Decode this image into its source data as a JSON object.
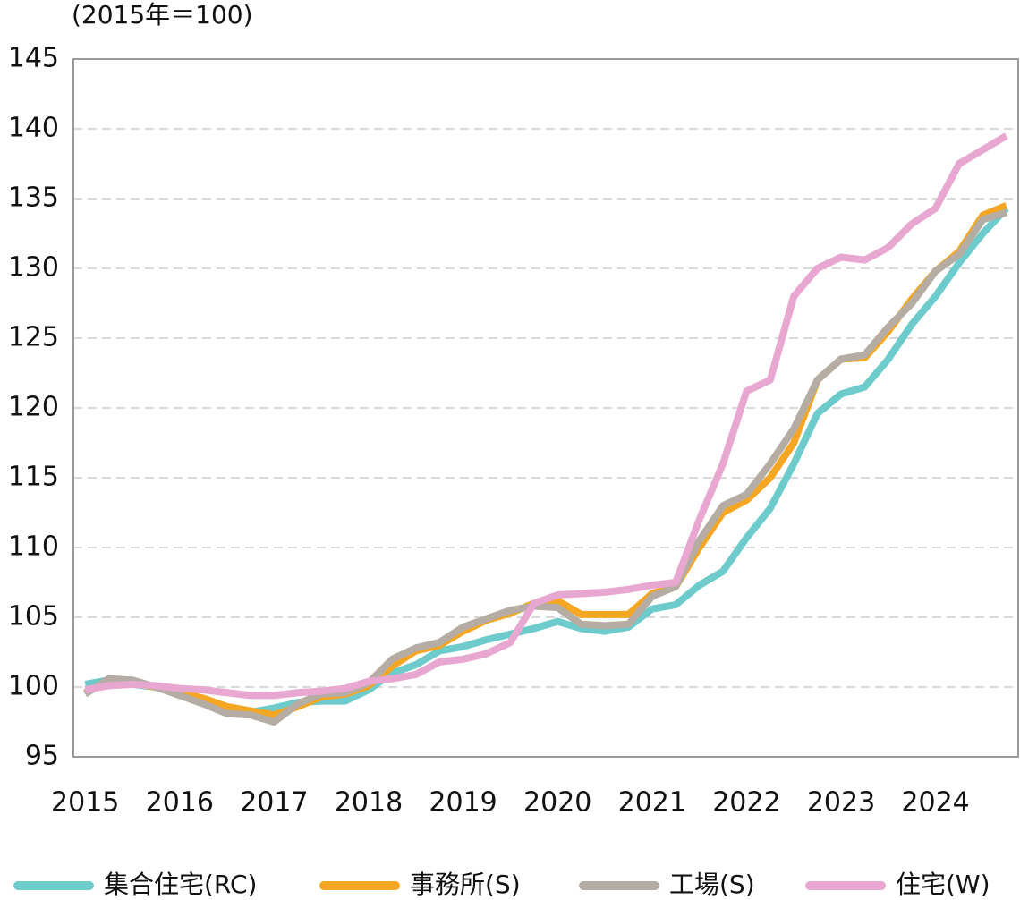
{
  "chart_data": {
    "type": "line",
    "y_label": "(2015年＝100)",
    "categories": [
      "2015",
      null,
      null,
      null,
      "2016",
      null,
      null,
      null,
      "2017",
      null,
      null,
      null,
      "2018",
      null,
      null,
      null,
      "2019",
      null,
      null,
      null,
      "2020",
      null,
      null,
      null,
      "2021",
      null,
      null,
      null,
      "2022",
      null,
      null,
      null,
      "2023",
      null,
      null,
      null,
      "2024",
      null,
      null,
      null
    ],
    "ylim": [
      95,
      145
    ],
    "yticks": [
      95,
      100,
      105,
      110,
      115,
      120,
      125,
      130,
      135,
      140,
      145
    ],
    "grid": true,
    "legend": "bottom",
    "series": [
      {
        "name": "集合住宅(RC)",
        "color": "#6ecbcc",
        "values": [
          100.2,
          100.5,
          100.2,
          100.0,
          99.5,
          99.0,
          98.5,
          98.2,
          98.5,
          98.9,
          99.0,
          99.0,
          99.8,
          101.0,
          101.6,
          102.6,
          102.9,
          103.4,
          103.8,
          104.2,
          104.7,
          104.2,
          104.0,
          104.3,
          105.6,
          105.9,
          107.3,
          108.3,
          110.7,
          112.8,
          116.0,
          119.6,
          121.0,
          121.5,
          123.5,
          126.0,
          128.0,
          130.4,
          132.5,
          134.3
        ]
      },
      {
        "name": "事務所(S)",
        "color": "#f5a623",
        "values": [
          99.6,
          100.4,
          100.3,
          100.0,
          99.6,
          99.2,
          98.6,
          98.3,
          98.0,
          98.6,
          99.3,
          99.5,
          100.1,
          101.5,
          102.6,
          103.0,
          104.0,
          104.8,
          105.3,
          106.0,
          106.2,
          105.2,
          105.2,
          105.2,
          106.7,
          107.2,
          110.0,
          112.5,
          113.4,
          115.0,
          117.5,
          122.0,
          123.5,
          123.6,
          125.5,
          127.8,
          129.8,
          131.2,
          133.8,
          134.5
        ]
      },
      {
        "name": "工場(S)",
        "color": "#b5aca4",
        "values": [
          99.5,
          100.6,
          100.5,
          100.0,
          99.4,
          98.8,
          98.1,
          98.0,
          97.5,
          98.8,
          99.5,
          99.6,
          100.3,
          102.0,
          102.8,
          103.2,
          104.3,
          104.9,
          105.5,
          105.8,
          105.7,
          104.5,
          104.4,
          104.5,
          106.5,
          107.2,
          110.5,
          113.0,
          113.8,
          116.0,
          118.5,
          122.0,
          123.5,
          123.8,
          125.8,
          127.5,
          129.8,
          131.0,
          133.5,
          134.0
        ]
      },
      {
        "name": "住宅(W)",
        "color": "#e8a7d0",
        "values": [
          99.8,
          100.1,
          100.2,
          100.1,
          99.9,
          99.8,
          99.6,
          99.4,
          99.4,
          99.6,
          99.7,
          99.9,
          100.4,
          100.6,
          100.9,
          101.8,
          102.0,
          102.4,
          103.2,
          106.0,
          106.6,
          106.7,
          106.8,
          107.0,
          107.3,
          107.5,
          112.0,
          116.0,
          121.2,
          122.0,
          128.0,
          130.0,
          130.8,
          130.6,
          131.5,
          133.2,
          134.3,
          137.5,
          138.5,
          139.5
        ]
      }
    ]
  }
}
